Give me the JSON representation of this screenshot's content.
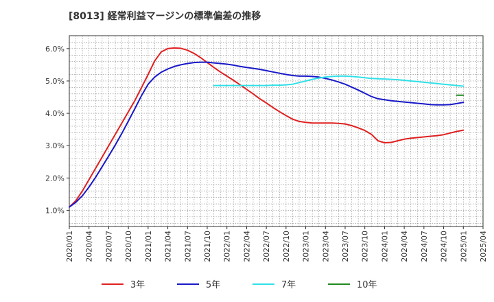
{
  "chart_data": {
    "type": "line",
    "title": "[8013]  経常利益マージンの標準偏差の推移",
    "xlabel": "",
    "ylabel": "",
    "x_ticks": [
      "2020/01",
      "2020/04",
      "2020/07",
      "2020/10",
      "2021/01",
      "2021/04",
      "2021/07",
      "2021/10",
      "2022/01",
      "2022/04",
      "2022/07",
      "2022/10",
      "2023/01",
      "2023/04",
      "2023/07",
      "2023/10",
      "2024/01",
      "2024/04",
      "2024/07",
      "2024/10",
      "2025/01",
      "2025/04"
    ],
    "y_ticks": [
      "1.0%",
      "2.0%",
      "3.0%",
      "4.0%",
      "5.0%",
      "6.0%"
    ],
    "ylim": [
      0.5,
      6.4
    ],
    "grid": true,
    "legend_position": "bottom",
    "series": [
      {
        "name": "3年",
        "color": "#e02020",
        "points": [
          [
            "2020/01",
            1.1
          ],
          [
            "2020/02",
            1.3
          ],
          [
            "2020/03",
            1.6
          ],
          [
            "2020/04",
            1.95
          ],
          [
            "2020/05",
            2.3
          ],
          [
            "2020/06",
            2.65
          ],
          [
            "2020/07",
            3.0
          ],
          [
            "2020/08",
            3.35
          ],
          [
            "2020/09",
            3.7
          ],
          [
            "2020/10",
            4.05
          ],
          [
            "2020/11",
            4.4
          ],
          [
            "2020/12",
            4.8
          ],
          [
            "2021/01",
            5.2
          ],
          [
            "2021/02",
            5.62
          ],
          [
            "2021/03",
            5.9
          ],
          [
            "2021/04",
            6.0
          ],
          [
            "2021/05",
            6.02
          ],
          [
            "2021/06",
            6.01
          ],
          [
            "2021/07",
            5.95
          ],
          [
            "2021/08",
            5.85
          ],
          [
            "2021/09",
            5.72
          ],
          [
            "2021/10",
            5.57
          ],
          [
            "2021/11",
            5.42
          ],
          [
            "2021/12",
            5.28
          ],
          [
            "2022/01",
            5.15
          ],
          [
            "2022/02",
            5.02
          ],
          [
            "2022/03",
            4.88
          ],
          [
            "2022/04",
            4.74
          ],
          [
            "2022/05",
            4.6
          ],
          [
            "2022/06",
            4.45
          ],
          [
            "2022/07",
            4.32
          ],
          [
            "2022/08",
            4.18
          ],
          [
            "2022/09",
            4.05
          ],
          [
            "2022/10",
            3.93
          ],
          [
            "2022/11",
            3.82
          ],
          [
            "2022/12",
            3.75
          ],
          [
            "2023/01",
            3.72
          ],
          [
            "2023/02",
            3.7
          ],
          [
            "2023/03",
            3.7
          ],
          [
            "2023/04",
            3.7
          ],
          [
            "2023/05",
            3.7
          ],
          [
            "2023/06",
            3.69
          ],
          [
            "2023/07",
            3.67
          ],
          [
            "2023/08",
            3.62
          ],
          [
            "2023/09",
            3.55
          ],
          [
            "2023/10",
            3.47
          ],
          [
            "2023/11",
            3.35
          ],
          [
            "2023/12",
            3.15
          ],
          [
            "2024/01",
            3.09
          ],
          [
            "2024/02",
            3.1
          ],
          [
            "2024/03",
            3.15
          ],
          [
            "2024/04",
            3.2
          ],
          [
            "2024/05",
            3.23
          ],
          [
            "2024/06",
            3.25
          ],
          [
            "2024/07",
            3.27
          ],
          [
            "2024/08",
            3.29
          ],
          [
            "2024/09",
            3.31
          ],
          [
            "2024/10",
            3.34
          ],
          [
            "2024/11",
            3.39
          ],
          [
            "2024/12",
            3.44
          ],
          [
            "2025/01",
            3.48
          ]
        ]
      },
      {
        "name": "5年",
        "color": "#1818c8",
        "points": [
          [
            "2020/01",
            1.1
          ],
          [
            "2020/02",
            1.25
          ],
          [
            "2020/03",
            1.45
          ],
          [
            "2020/04",
            1.72
          ],
          [
            "2020/05",
            2.02
          ],
          [
            "2020/06",
            2.35
          ],
          [
            "2020/07",
            2.68
          ],
          [
            "2020/08",
            3.02
          ],
          [
            "2020/09",
            3.38
          ],
          [
            "2020/10",
            3.76
          ],
          [
            "2020/11",
            4.15
          ],
          [
            "2020/12",
            4.55
          ],
          [
            "2021/01",
            4.9
          ],
          [
            "2021/02",
            5.12
          ],
          [
            "2021/03",
            5.27
          ],
          [
            "2021/04",
            5.37
          ],
          [
            "2021/05",
            5.45
          ],
          [
            "2021/06",
            5.5
          ],
          [
            "2021/07",
            5.54
          ],
          [
            "2021/08",
            5.57
          ],
          [
            "2021/09",
            5.58
          ],
          [
            "2021/10",
            5.58
          ],
          [
            "2021/11",
            5.56
          ],
          [
            "2021/12",
            5.54
          ],
          [
            "2022/01",
            5.52
          ],
          [
            "2022/02",
            5.49
          ],
          [
            "2022/03",
            5.45
          ],
          [
            "2022/04",
            5.42
          ],
          [
            "2022/05",
            5.39
          ],
          [
            "2022/06",
            5.36
          ],
          [
            "2022/07",
            5.32
          ],
          [
            "2022/08",
            5.28
          ],
          [
            "2022/09",
            5.24
          ],
          [
            "2022/10",
            5.2
          ],
          [
            "2022/11",
            5.17
          ],
          [
            "2022/12",
            5.15
          ],
          [
            "2023/01",
            5.15
          ],
          [
            "2023/02",
            5.14
          ],
          [
            "2023/03",
            5.12
          ],
          [
            "2023/04",
            5.08
          ],
          [
            "2023/05",
            5.03
          ],
          [
            "2023/06",
            4.97
          ],
          [
            "2023/07",
            4.9
          ],
          [
            "2023/08",
            4.81
          ],
          [
            "2023/09",
            4.72
          ],
          [
            "2023/10",
            4.62
          ],
          [
            "2023/11",
            4.52
          ],
          [
            "2023/12",
            4.45
          ],
          [
            "2024/01",
            4.42
          ],
          [
            "2024/02",
            4.39
          ],
          [
            "2024/03",
            4.37
          ],
          [
            "2024/04",
            4.35
          ],
          [
            "2024/05",
            4.33
          ],
          [
            "2024/06",
            4.31
          ],
          [
            "2024/07",
            4.29
          ],
          [
            "2024/08",
            4.27
          ],
          [
            "2024/09",
            4.26
          ],
          [
            "2024/10",
            4.26
          ],
          [
            "2024/11",
            4.27
          ],
          [
            "2024/12",
            4.3
          ],
          [
            "2025/01",
            4.34
          ]
        ]
      },
      {
        "name": "7年",
        "color": "#30e0e8",
        "points": [
          [
            "2021/11",
            4.86
          ],
          [
            "2021/12",
            4.86
          ],
          [
            "2022/01",
            4.86
          ],
          [
            "2022/02",
            4.86
          ],
          [
            "2022/03",
            4.86
          ],
          [
            "2022/04",
            4.86
          ],
          [
            "2022/05",
            4.86
          ],
          [
            "2022/06",
            4.86
          ],
          [
            "2022/07",
            4.86
          ],
          [
            "2022/08",
            4.87
          ],
          [
            "2022/09",
            4.87
          ],
          [
            "2022/10",
            4.88
          ],
          [
            "2022/11",
            4.9
          ],
          [
            "2022/12",
            4.95
          ],
          [
            "2023/01",
            5.0
          ],
          [
            "2023/02",
            5.05
          ],
          [
            "2023/03",
            5.09
          ],
          [
            "2023/04",
            5.12
          ],
          [
            "2023/05",
            5.14
          ],
          [
            "2023/06",
            5.15
          ],
          [
            "2023/07",
            5.15
          ],
          [
            "2023/08",
            5.14
          ],
          [
            "2023/09",
            5.12
          ],
          [
            "2023/10",
            5.1
          ],
          [
            "2023/11",
            5.08
          ],
          [
            "2023/12",
            5.07
          ],
          [
            "2024/01",
            5.06
          ],
          [
            "2024/02",
            5.05
          ],
          [
            "2024/03",
            5.04
          ],
          [
            "2024/04",
            5.02
          ],
          [
            "2024/05",
            5.0
          ],
          [
            "2024/06",
            4.98
          ],
          [
            "2024/07",
            4.96
          ],
          [
            "2024/08",
            4.94
          ],
          [
            "2024/09",
            4.92
          ],
          [
            "2024/10",
            4.9
          ],
          [
            "2024/11",
            4.88
          ],
          [
            "2024/12",
            4.86
          ],
          [
            "2025/01",
            4.84
          ]
        ]
      },
      {
        "name": "10年",
        "color": "#208a20",
        "points": [
          [
            "2024/12",
            4.56
          ],
          [
            "2025/01",
            4.56
          ]
        ]
      }
    ]
  }
}
